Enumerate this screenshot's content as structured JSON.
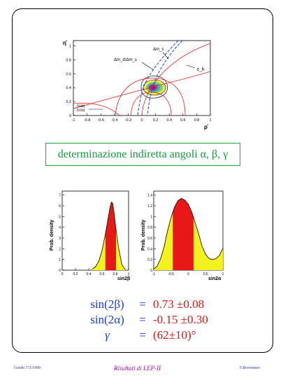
{
  "header_fragment": "",
  "top_plot": {
    "y_axis_label": "η̄",
    "x_axis_label": "ρ̄",
    "x_ticks": [
      "-1",
      "-0.8",
      "-0.6",
      "-0.4",
      "-0.2",
      "0",
      "0.2",
      "0.4",
      "0.6",
      "0.8",
      "1"
    ],
    "y_ticks": [
      "0",
      "0.2",
      "0.4",
      "0.6",
      "0.8",
      "1"
    ],
    "annotations": {
      "dms": "Δm_s",
      "dmd_dms": "Δm_d/Δm_s",
      "epsk": "ε_k",
      "vub1": "|Vub|",
      "vub2": "|Vcb|"
    },
    "colors": {
      "curve_red": "#e02020",
      "curve_blue": "#2244dd",
      "curve_dark": "#000000"
    }
  },
  "banner": {
    "text": "determinazione indiretta angoli α, β, γ",
    "color": "#119d3c"
  },
  "hist_left": {
    "y_label": "Prob. density",
    "x_label": "sin2β",
    "x_ticks": [
      "0",
      "0.2",
      "0.4",
      "0.6",
      "0.8",
      "1"
    ],
    "y_ticks": [
      "0",
      "1",
      "2",
      "3",
      "4",
      "5",
      "6",
      "7"
    ],
    "chart_data": {
      "type": "area",
      "x": [
        0.45,
        0.5,
        0.55,
        0.6,
        0.65,
        0.7,
        0.72,
        0.74,
        0.76,
        0.78,
        0.8,
        0.85,
        0.9,
        0.95
      ],
      "y": [
        0.1,
        0.3,
        0.8,
        1.8,
        3.3,
        5.0,
        5.7,
        6.2,
        6.1,
        5.3,
        4.2,
        2.0,
        0.5,
        0.05
      ],
      "central_band": [
        0.65,
        0.81
      ]
    }
  },
  "hist_right": {
    "y_label": "Prob. density",
    "x_label": "sin2α",
    "x_ticks": [
      "-1",
      "-0.5",
      "0",
      "0.5",
      "1"
    ],
    "y_ticks": [
      "0",
      "0.2",
      "0.4",
      "0.6",
      "0.8",
      "1",
      "1.2",
      "1.4"
    ],
    "chart_data": {
      "type": "area",
      "x": [
        -1.0,
        -0.9,
        -0.8,
        -0.7,
        -0.6,
        -0.5,
        -0.4,
        -0.3,
        -0.2,
        -0.1,
        0.0,
        0.1,
        0.2,
        0.3,
        0.4,
        0.5,
        0.6,
        0.7,
        0.8,
        0.9,
        1.0
      ],
      "y": [
        0.02,
        0.08,
        0.22,
        0.45,
        0.75,
        1.0,
        1.2,
        1.32,
        1.36,
        1.33,
        1.25,
        1.1,
        0.9,
        0.68,
        0.45,
        0.3,
        0.22,
        0.2,
        0.22,
        0.28,
        0.42
      ],
      "central_band": [
        -0.45,
        0.15
      ]
    }
  },
  "results": [
    {
      "lhs": "sin(2β)",
      "eq": "=",
      "val": "0.73 ±0.08"
    },
    {
      "lhs": "sin(2α)",
      "eq": "=",
      "val": "-0.15 ±0.30"
    },
    {
      "lhs": "γ",
      "eq": "=",
      "val": "(62±10)°"
    }
  ],
  "footer": {
    "left": "Gerdo 7/3/1999",
    "middle": "Risultati di LEP-II",
    "right": "F.Borromeo"
  }
}
